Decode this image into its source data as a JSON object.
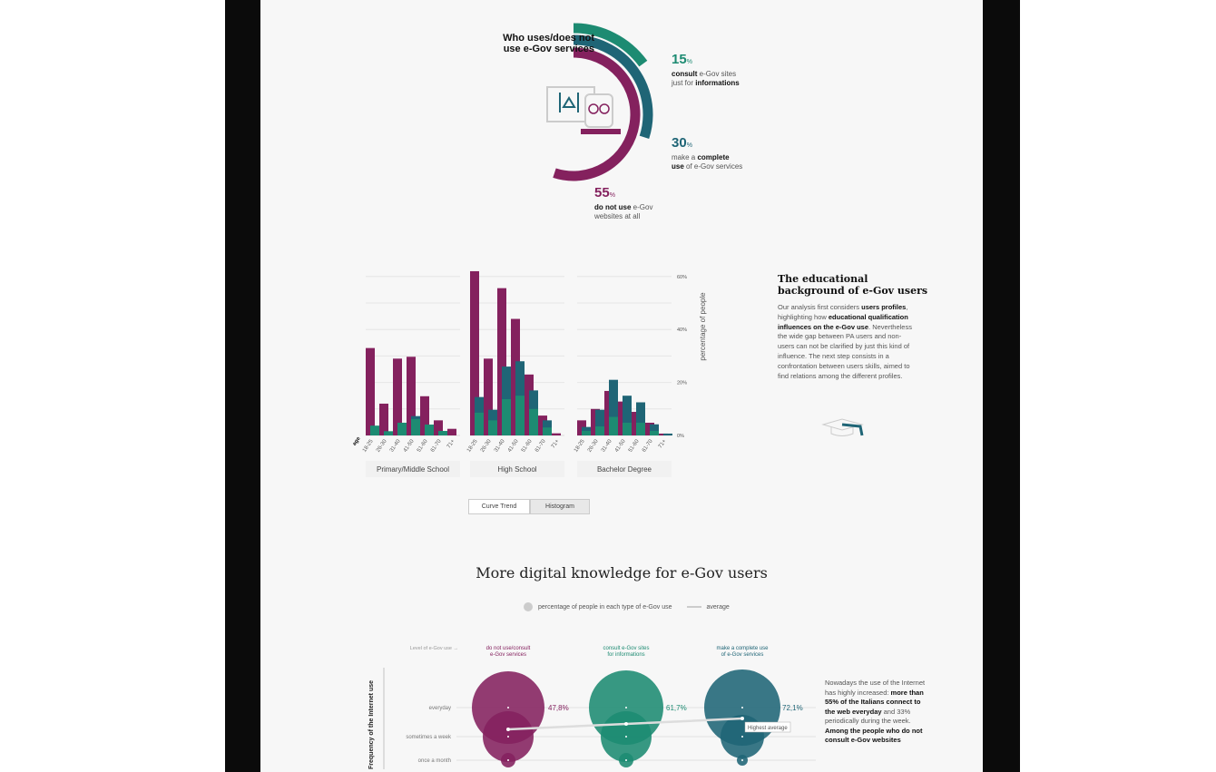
{
  "colors": {
    "magenta": "#84215e",
    "darkteal": "#1f6576",
    "green": "#1d8b72",
    "grid": "#e4e4e4"
  },
  "donut": {
    "title_line1": "Who uses/does not",
    "title_line2": "use e-Gov services",
    "segments": [
      {
        "pct": 15,
        "value": "15",
        "unit": "%",
        "line1_bold": "consult",
        "line1_rest": " e-Gov sites",
        "line2_rest": "just for ",
        "line2_bold": "informations",
        "color": "#1d8b72"
      },
      {
        "pct": 30,
        "value": "30",
        "unit": "%",
        "line1_rest": "make a ",
        "line1_bold": "complete",
        "line2_bold": "use",
        "line2_rest": " of e-Gov services",
        "color": "#1f6576"
      },
      {
        "pct": 55,
        "value": "55",
        "unit": "%",
        "line1_bold": "do not use",
        "line1_rest": " e-Gov",
        "line2_rest": "websites at all",
        "color": "#84215e"
      }
    ]
  },
  "chart_data": {
    "type": "bar",
    "ylabel": "percentage of people",
    "xlabel": "age",
    "ylim": [
      0,
      60
    ],
    "yticks": [
      "0%",
      "20%",
      "40%",
      "60%"
    ],
    "grid": true,
    "categories": [
      "18-25",
      "26-30",
      "31-40",
      "41-50",
      "51-60",
      "61-70",
      "71+"
    ],
    "groups": [
      {
        "name": "Primary/Middle School",
        "series": [
          {
            "color": "#84215e",
            "values": [
              33,
              12,
              29,
              29.7,
              14.8,
              5.7,
              2.5
            ]
          },
          {
            "color": "#1f6576",
            "values": [
              0,
              0,
              0,
              7.3,
              0,
              0,
              0
            ]
          },
          {
            "color": "#1d8b72",
            "values": [
              3.7,
              1.6,
              4.8,
              6.2,
              4.1,
              1.7,
              0
            ]
          }
        ]
      },
      {
        "name": "High School",
        "series": [
          {
            "color": "#84215e",
            "values": [
              62,
              29,
              55.6,
              44,
              23,
              7.5,
              0.8
            ]
          },
          {
            "color": "#1f6576",
            "values": [
              14.5,
              9.7,
              26,
              28,
              17,
              5.7,
              0
            ]
          },
          {
            "color": "#1d8b72",
            "values": [
              8.6,
              5.7,
              13.7,
              15,
              10,
              3,
              0
            ]
          }
        ]
      },
      {
        "name": "Bachelor Degree",
        "series": [
          {
            "color": "#84215e",
            "values": [
              5.7,
              10,
              16.8,
              12.8,
              8.9,
              4.8,
              0.7
            ]
          },
          {
            "color": "#1f6576",
            "values": [
              3.2,
              9.7,
              21,
              15,
              12.5,
              4.2,
              0.7
            ]
          },
          {
            "color": "#1d8b72",
            "values": [
              1.7,
              3.4,
              7,
              4.8,
              4.8,
              1.7,
              0
            ]
          }
        ]
      }
    ]
  },
  "toggle": {
    "curve": "Curve Trend",
    "histogram": "Histogram",
    "active": "Histogram"
  },
  "edu": {
    "title1": "The educational",
    "title2": "background of e-Gov users",
    "p": [
      {
        "t": "Our analysis first considers "
      },
      {
        "t": "users profiles",
        "b": true
      },
      {
        "t": ", highlighting how "
      },
      {
        "t": "educational qualification influences on the e-Gov use",
        "b": true
      },
      {
        "t": ". Nevertheless the wide gap between PA users and non-users can not be clarified by just this kind of influence. The next step consists in a confrontation between users skills, aimed to find relations among the different profiles."
      }
    ]
  },
  "knowledge": {
    "title": "More digital knowledge for e-Gov users",
    "legend_bubble": "percentage of people in each type of e-Gov use",
    "legend_line": "average",
    "level_label": "Level of e-Gov use →",
    "yaxis_label": "Frequency of the Internet use",
    "rows": [
      "everyday",
      "sometimes a week",
      "once a month"
    ],
    "columns": [
      {
        "l1": "do not use/consult",
        "l2": "e-Gov services",
        "avg": "47,8%",
        "color": "#84215e"
      },
      {
        "l1": "consult e-Gov sites",
        "l2": "for informations",
        "avg": "61,7%",
        "color": "#1d8b72"
      },
      {
        "l1": "make a complete use",
        "l2": "of e-Gov services",
        "avg": "72,1%",
        "color": "#1f6576"
      }
    ],
    "tooltip": "Highest average",
    "side_text": [
      {
        "t": "Nowadays the use of the Internet has highly increased: "
      },
      {
        "t": "more than 55% of the Italians connect to the web everyday",
        "b": true
      },
      {
        "t": " and 33% periodically during the week. "
      },
      {
        "t": "Among the people who do not consult e-Gov websites",
        "b": true
      }
    ]
  }
}
